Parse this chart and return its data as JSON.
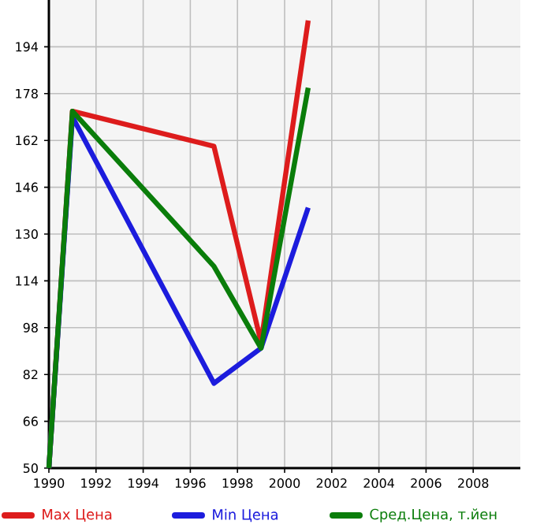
{
  "chart_data": {
    "type": "line",
    "x": [
      1990,
      1991,
      1997,
      1999,
      2001
    ],
    "series": [
      {
        "name": "Max Цена",
        "color": "#dd1c1c",
        "values": [
          50,
          172,
          160,
          93,
          203
        ]
      },
      {
        "name": "Min Цена",
        "color": "#1c1cdd",
        "values": [
          50,
          170,
          79,
          91,
          139
        ]
      },
      {
        "name": "Сред.Цена, т.йен",
        "color": "#0a7d0a",
        "values": [
          50,
          172,
          119,
          91,
          180
        ]
      }
    ],
    "xlim": [
      1990,
      2010
    ],
    "ylim": [
      50,
      210
    ],
    "xticks": [
      1990,
      1992,
      1994,
      1996,
      1998,
      2000,
      2002,
      2004,
      2006,
      2008
    ],
    "yticks": [
      50,
      66,
      82,
      98,
      114,
      130,
      146,
      162,
      178,
      194
    ],
    "grid": true,
    "legend": "bottom",
    "marker": "none",
    "line_style": "solid"
  }
}
